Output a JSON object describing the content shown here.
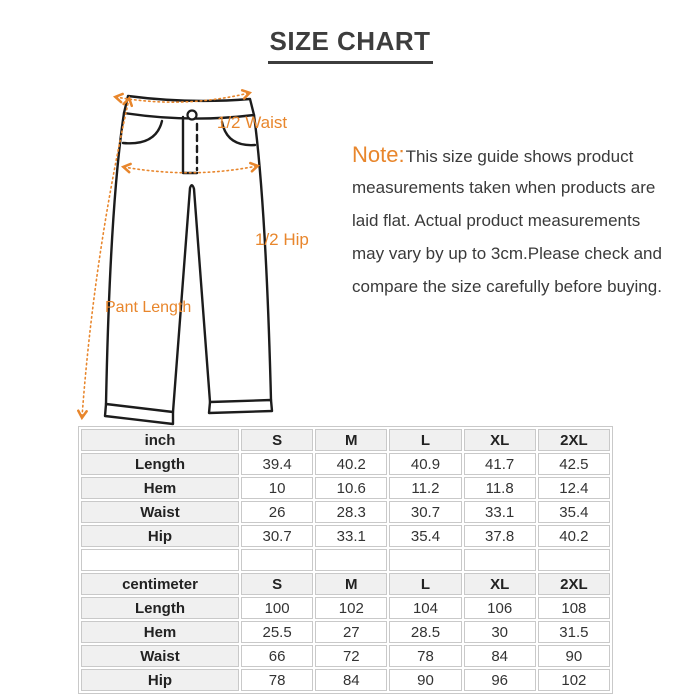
{
  "page": {
    "title": "SIZE CHART"
  },
  "diagram": {
    "labels": {
      "waist": "1/2 Waist",
      "hip": "1/2 Hip",
      "length": "Pant Length"
    },
    "accent_color": "#e8862c",
    "outline_color": "#1c1c1c"
  },
  "note": {
    "label": "Note:",
    "lines": [
      "This size guide shows product",
      "measurements taken when products are",
      "laid flat. Actual product measurements",
      "may vary by up to 3cm.Please check and",
      "compare the size carefully before buying."
    ]
  },
  "chart_data": {
    "type": "table",
    "columns": [
      "S",
      "M",
      "L",
      "XL",
      "2XL"
    ],
    "tables": [
      {
        "unit_label": "inch",
        "rows": [
          {
            "label": "Length",
            "values": [
              "39.4",
              "40.2",
              "40.9",
              "41.7",
              "42.5"
            ]
          },
          {
            "label": "Hem",
            "values": [
              "10",
              "10.6",
              "11.2",
              "11.8",
              "12.4"
            ]
          },
          {
            "label": "Waist",
            "values": [
              "26",
              "28.3",
              "30.7",
              "33.1",
              "35.4"
            ]
          },
          {
            "label": "Hip",
            "values": [
              "30.7",
              "33.1",
              "35.4",
              "37.8",
              "40.2"
            ]
          }
        ]
      },
      {
        "unit_label": "centimeter",
        "rows": [
          {
            "label": "Length",
            "values": [
              "100",
              "102",
              "104",
              "106",
              "108"
            ]
          },
          {
            "label": "Hem",
            "values": [
              "25.5",
              "27",
              "28.5",
              "30",
              "31.5"
            ]
          },
          {
            "label": "Waist",
            "values": [
              "66",
              "72",
              "78",
              "84",
              "90"
            ]
          },
          {
            "label": "Hip",
            "values": [
              "78",
              "84",
              "90",
              "96",
              "102"
            ]
          }
        ]
      }
    ]
  }
}
